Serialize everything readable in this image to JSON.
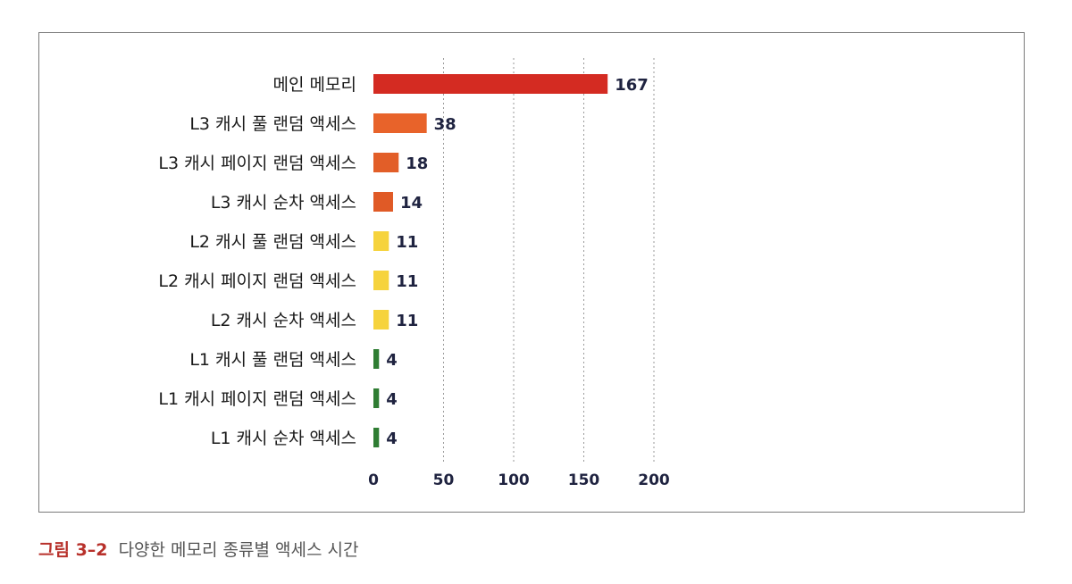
{
  "caption": {
    "label": "그림 3–2",
    "text": "다양한 메모리 종류별 액세스 시간"
  },
  "chart_data": {
    "type": "bar",
    "orientation": "horizontal",
    "title": "",
    "xlabel": "",
    "ylabel": "",
    "xlim": [
      0,
      200
    ],
    "xticks": [
      0,
      50,
      100,
      150,
      200
    ],
    "grid": "vertical dotted",
    "legend": "none",
    "categories": [
      "메인 메모리",
      "L3 캐시 풀 랜덤 액세스",
      "L3 캐시 페이지 랜덤 액세스",
      "L3 캐시 순차 액세스",
      "L2 캐시 풀 랜덤 액세스",
      "L2 캐시 페이지 랜덤 액세스",
      "L2 캐시 순차 액세스",
      "L1 캐시 풀 랜덤 액세스",
      "L1 캐시 페이지 랜덤 액세스",
      "L1 캐시 순차 액세스"
    ],
    "values": [
      167,
      38,
      18,
      14,
      11,
      11,
      11,
      4,
      4,
      4
    ],
    "colors": [
      "#d42b22",
      "#e8632a",
      "#e25e28",
      "#e05a26",
      "#f6d33c",
      "#f6d33c",
      "#f6d33c",
      "#2f7d33",
      "#2f7d33",
      "#2f7d33"
    ]
  }
}
